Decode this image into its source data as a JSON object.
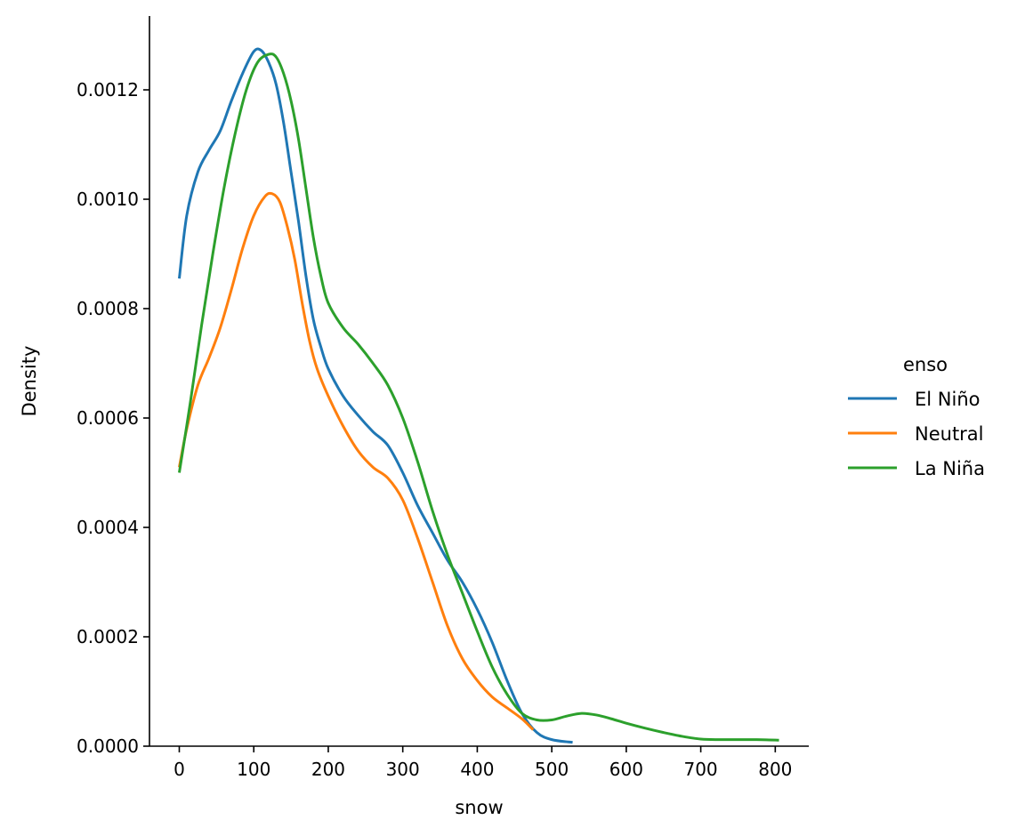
{
  "chart_data": {
    "type": "line",
    "xlabel": "snow",
    "ylabel": "Density",
    "xlim": [
      -40,
      845
    ],
    "ylim": [
      0,
      0.001335
    ],
    "xticks": [
      0,
      100,
      200,
      300,
      400,
      500,
      600,
      700,
      800
    ],
    "xtick_labels": [
      "0",
      "100",
      "200",
      "300",
      "400",
      "500",
      "600",
      "700",
      "800"
    ],
    "yticks": [
      0,
      0.0002,
      0.0004,
      0.0006,
      0.0008,
      0.001,
      0.0012
    ],
    "ytick_labels": [
      "0.0000",
      "0.0002",
      "0.0004",
      "0.0006",
      "0.0008",
      "0.0010",
      "0.0012"
    ],
    "grid": false,
    "legend": {
      "title": "enso",
      "placement": "right"
    },
    "series": [
      {
        "name": "El Niño",
        "color": "#1f77b4",
        "points": [
          [
            0,
            0.000855
          ],
          [
            10,
            0.00097
          ],
          [
            25,
            0.00105
          ],
          [
            40,
            0.00109
          ],
          [
            55,
            0.001125
          ],
          [
            70,
            0.00118
          ],
          [
            85,
            0.00123
          ],
          [
            100,
            0.00127
          ],
          [
            110,
            0.001272
          ],
          [
            120,
            0.00125
          ],
          [
            130,
            0.00121
          ],
          [
            140,
            0.00114
          ],
          [
            150,
            0.00105
          ],
          [
            160,
            0.00096
          ],
          [
            170,
            0.00086
          ],
          [
            180,
            0.00078
          ],
          [
            190,
            0.00073
          ],
          [
            200,
            0.00069
          ],
          [
            220,
            0.00064
          ],
          [
            240,
            0.000605
          ],
          [
            260,
            0.000575
          ],
          [
            280,
            0.00055
          ],
          [
            300,
            0.0005
          ],
          [
            320,
            0.00044
          ],
          [
            340,
            0.00039
          ],
          [
            360,
            0.00034
          ],
          [
            380,
            0.0003
          ],
          [
            400,
            0.00025
          ],
          [
            420,
            0.00019
          ],
          [
            440,
            0.00012
          ],
          [
            460,
            6e-05
          ],
          [
            480,
            2.5e-05
          ],
          [
            500,
            1.2e-05
          ],
          [
            528,
            7e-06
          ]
        ]
      },
      {
        "name": "Neutral",
        "color": "#ff7f0e",
        "points": [
          [
            0,
            0.00051
          ],
          [
            10,
            0.00058
          ],
          [
            25,
            0.00066
          ],
          [
            40,
            0.00071
          ],
          [
            55,
            0.000765
          ],
          [
            70,
            0.000835
          ],
          [
            85,
            0.00091
          ],
          [
            100,
            0.00097
          ],
          [
            115,
            0.001005
          ],
          [
            125,
            0.00101
          ],
          [
            135,
            0.000995
          ],
          [
            145,
            0.00095
          ],
          [
            155,
            0.00089
          ],
          [
            165,
            0.00081
          ],
          [
            175,
            0.00074
          ],
          [
            185,
            0.00069
          ],
          [
            200,
            0.00064
          ],
          [
            220,
            0.000585
          ],
          [
            240,
            0.00054
          ],
          [
            260,
            0.00051
          ],
          [
            280,
            0.00049
          ],
          [
            300,
            0.00045
          ],
          [
            320,
            0.00038
          ],
          [
            340,
            0.0003
          ],
          [
            360,
            0.00022
          ],
          [
            380,
            0.00016
          ],
          [
            400,
            0.00012
          ],
          [
            420,
            9e-05
          ],
          [
            440,
            7e-05
          ],
          [
            460,
            5e-05
          ],
          [
            475,
            3e-05
          ]
        ]
      },
      {
        "name": "La Niña",
        "color": "#2ca02c",
        "points": [
          [
            0,
            0.0005
          ],
          [
            15,
            0.00063
          ],
          [
            30,
            0.00077
          ],
          [
            45,
            0.0009
          ],
          [
            60,
            0.00102
          ],
          [
            75,
            0.00112
          ],
          [
            90,
            0.0012
          ],
          [
            105,
            0.00125
          ],
          [
            120,
            0.001265
          ],
          [
            130,
            0.00126
          ],
          [
            140,
            0.00123
          ],
          [
            150,
            0.00118
          ],
          [
            160,
            0.00111
          ],
          [
            170,
            0.00102
          ],
          [
            180,
            0.00093
          ],
          [
            190,
            0.00086
          ],
          [
            200,
            0.00081
          ],
          [
            220,
            0.000765
          ],
          [
            240,
            0.000735
          ],
          [
            260,
            0.0007
          ],
          [
            280,
            0.00066
          ],
          [
            300,
            0.0006
          ],
          [
            320,
            0.00052
          ],
          [
            340,
            0.00043
          ],
          [
            360,
            0.00035
          ],
          [
            380,
            0.00028
          ],
          [
            400,
            0.00021
          ],
          [
            420,
            0.000145
          ],
          [
            440,
            9.5e-05
          ],
          [
            460,
            6e-05
          ],
          [
            480,
            4.8e-05
          ],
          [
            500,
            4.8e-05
          ],
          [
            520,
            5.5e-05
          ],
          [
            540,
            6e-05
          ],
          [
            560,
            5.7e-05
          ],
          [
            580,
            5e-05
          ],
          [
            600,
            4.2e-05
          ],
          [
            625,
            3.3e-05
          ],
          [
            650,
            2.5e-05
          ],
          [
            675,
            1.8e-05
          ],
          [
            700,
            1.3e-05
          ],
          [
            725,
            1.2e-05
          ],
          [
            750,
            1.2e-05
          ],
          [
            775,
            1.2e-05
          ],
          [
            805,
            1.1e-05
          ]
        ]
      }
    ]
  }
}
